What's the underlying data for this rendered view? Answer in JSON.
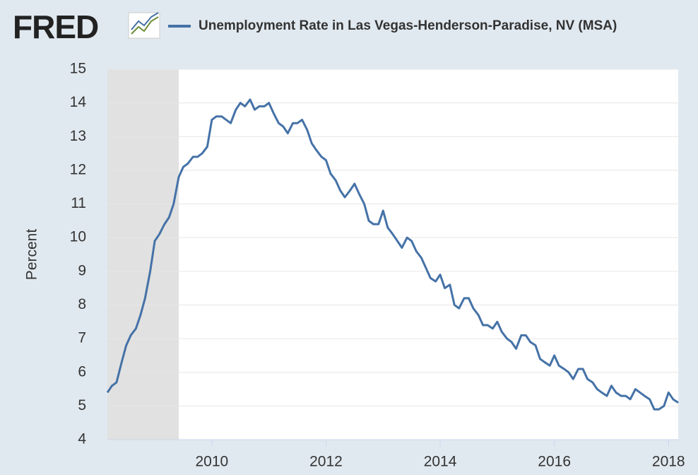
{
  "logo": "FRED",
  "chart_data": {
    "type": "line",
    "y_label": "Percent",
    "series": [
      {
        "name": "Unemployment Rate in Las Vegas-Henderson-Paradise, NV (MSA)",
        "color": "#4572a7",
        "values": [
          5.4,
          5.6,
          5.7,
          6.3,
          6.8,
          7.1,
          7.3,
          7.7,
          8.2,
          9.0,
          9.9,
          10.1,
          10.4,
          10.6,
          11.0,
          11.8,
          12.1,
          12.2,
          12.4,
          12.4,
          12.5,
          12.7,
          13.5,
          13.6,
          13.6,
          13.5,
          13.4,
          13.8,
          14.0,
          13.9,
          14.1,
          13.8,
          13.9,
          13.9,
          14.0,
          13.7,
          13.4,
          13.3,
          13.1,
          13.4,
          13.4,
          13.5,
          13.2,
          12.8,
          12.6,
          12.4,
          12.3,
          11.9,
          11.7,
          11.4,
          11.2,
          11.4,
          11.6,
          11.3,
          11.0,
          10.5,
          10.4,
          10.4,
          10.8,
          10.3,
          10.1,
          9.9,
          9.7,
          10.0,
          9.9,
          9.6,
          9.4,
          9.1,
          8.8,
          8.7,
          8.9,
          8.5,
          8.6,
          8.0,
          7.9,
          8.2,
          8.2,
          7.9,
          7.7,
          7.4,
          7.4,
          7.3,
          7.5,
          7.2,
          7.0,
          6.9,
          6.7,
          7.1,
          7.1,
          6.9,
          6.8,
          6.4,
          6.3,
          6.2,
          6.5,
          6.2,
          6.1,
          6.0,
          5.8,
          6.1,
          6.1,
          5.8,
          5.7,
          5.5,
          5.4,
          5.3,
          5.6,
          5.4,
          5.3,
          5.3,
          5.2,
          5.5,
          5.4,
          5.3,
          5.2,
          4.9,
          4.9,
          5.0,
          5.4,
          5.2,
          5.1
        ]
      }
    ],
    "x": [
      2008.17,
      2008.25,
      2008.33,
      2008.42,
      2008.5,
      2008.58,
      2008.67,
      2008.75,
      2008.83,
      2008.92,
      2009,
      2009.08,
      2009.17,
      2009.25,
      2009.33,
      2009.42,
      2009.5,
      2009.58,
      2009.67,
      2009.75,
      2009.83,
      2009.92,
      2010,
      2010.08,
      2010.17,
      2010.25,
      2010.33,
      2010.42,
      2010.5,
      2010.58,
      2010.67,
      2010.75,
      2010.83,
      2010.92,
      2011,
      2011.08,
      2011.17,
      2011.25,
      2011.33,
      2011.42,
      2011.5,
      2011.58,
      2011.67,
      2011.75,
      2011.83,
      2011.92,
      2012,
      2012.08,
      2012.17,
      2012.25,
      2012.33,
      2012.42,
      2012.5,
      2012.58,
      2012.67,
      2012.75,
      2012.83,
      2012.92,
      2013,
      2013.08,
      2013.17,
      2013.25,
      2013.33,
      2013.42,
      2013.5,
      2013.58,
      2013.67,
      2013.75,
      2013.83,
      2013.92,
      2014,
      2014.08,
      2014.17,
      2014.25,
      2014.33,
      2014.42,
      2014.5,
      2014.58,
      2014.67,
      2014.75,
      2014.83,
      2014.92,
      2015,
      2015.08,
      2015.17,
      2015.25,
      2015.33,
      2015.42,
      2015.5,
      2015.58,
      2015.67,
      2015.75,
      2015.83,
      2015.92,
      2016,
      2016.08,
      2016.17,
      2016.25,
      2016.33,
      2016.42,
      2016.5,
      2016.58,
      2016.67,
      2016.75,
      2016.83,
      2016.92,
      2017,
      2017.08,
      2017.17,
      2017.25,
      2017.33,
      2017.42,
      2017.5,
      2017.58,
      2017.67,
      2017.75,
      2017.83,
      2017.92,
      2018,
      2018.08,
      2018.17
    ],
    "xlim": [
      2008.17,
      2018.17
    ],
    "xticks": [
      2010,
      2012,
      2014,
      2016,
      2018
    ],
    "ylim": [
      4,
      15
    ],
    "yticks": [
      4,
      5,
      6,
      7,
      8,
      9,
      10,
      11,
      12,
      13,
      14,
      15
    ],
    "grid": true,
    "recession_shading": [
      [
        2007.92,
        2009.42
      ]
    ],
    "shading_color": "#e1e1e1"
  }
}
